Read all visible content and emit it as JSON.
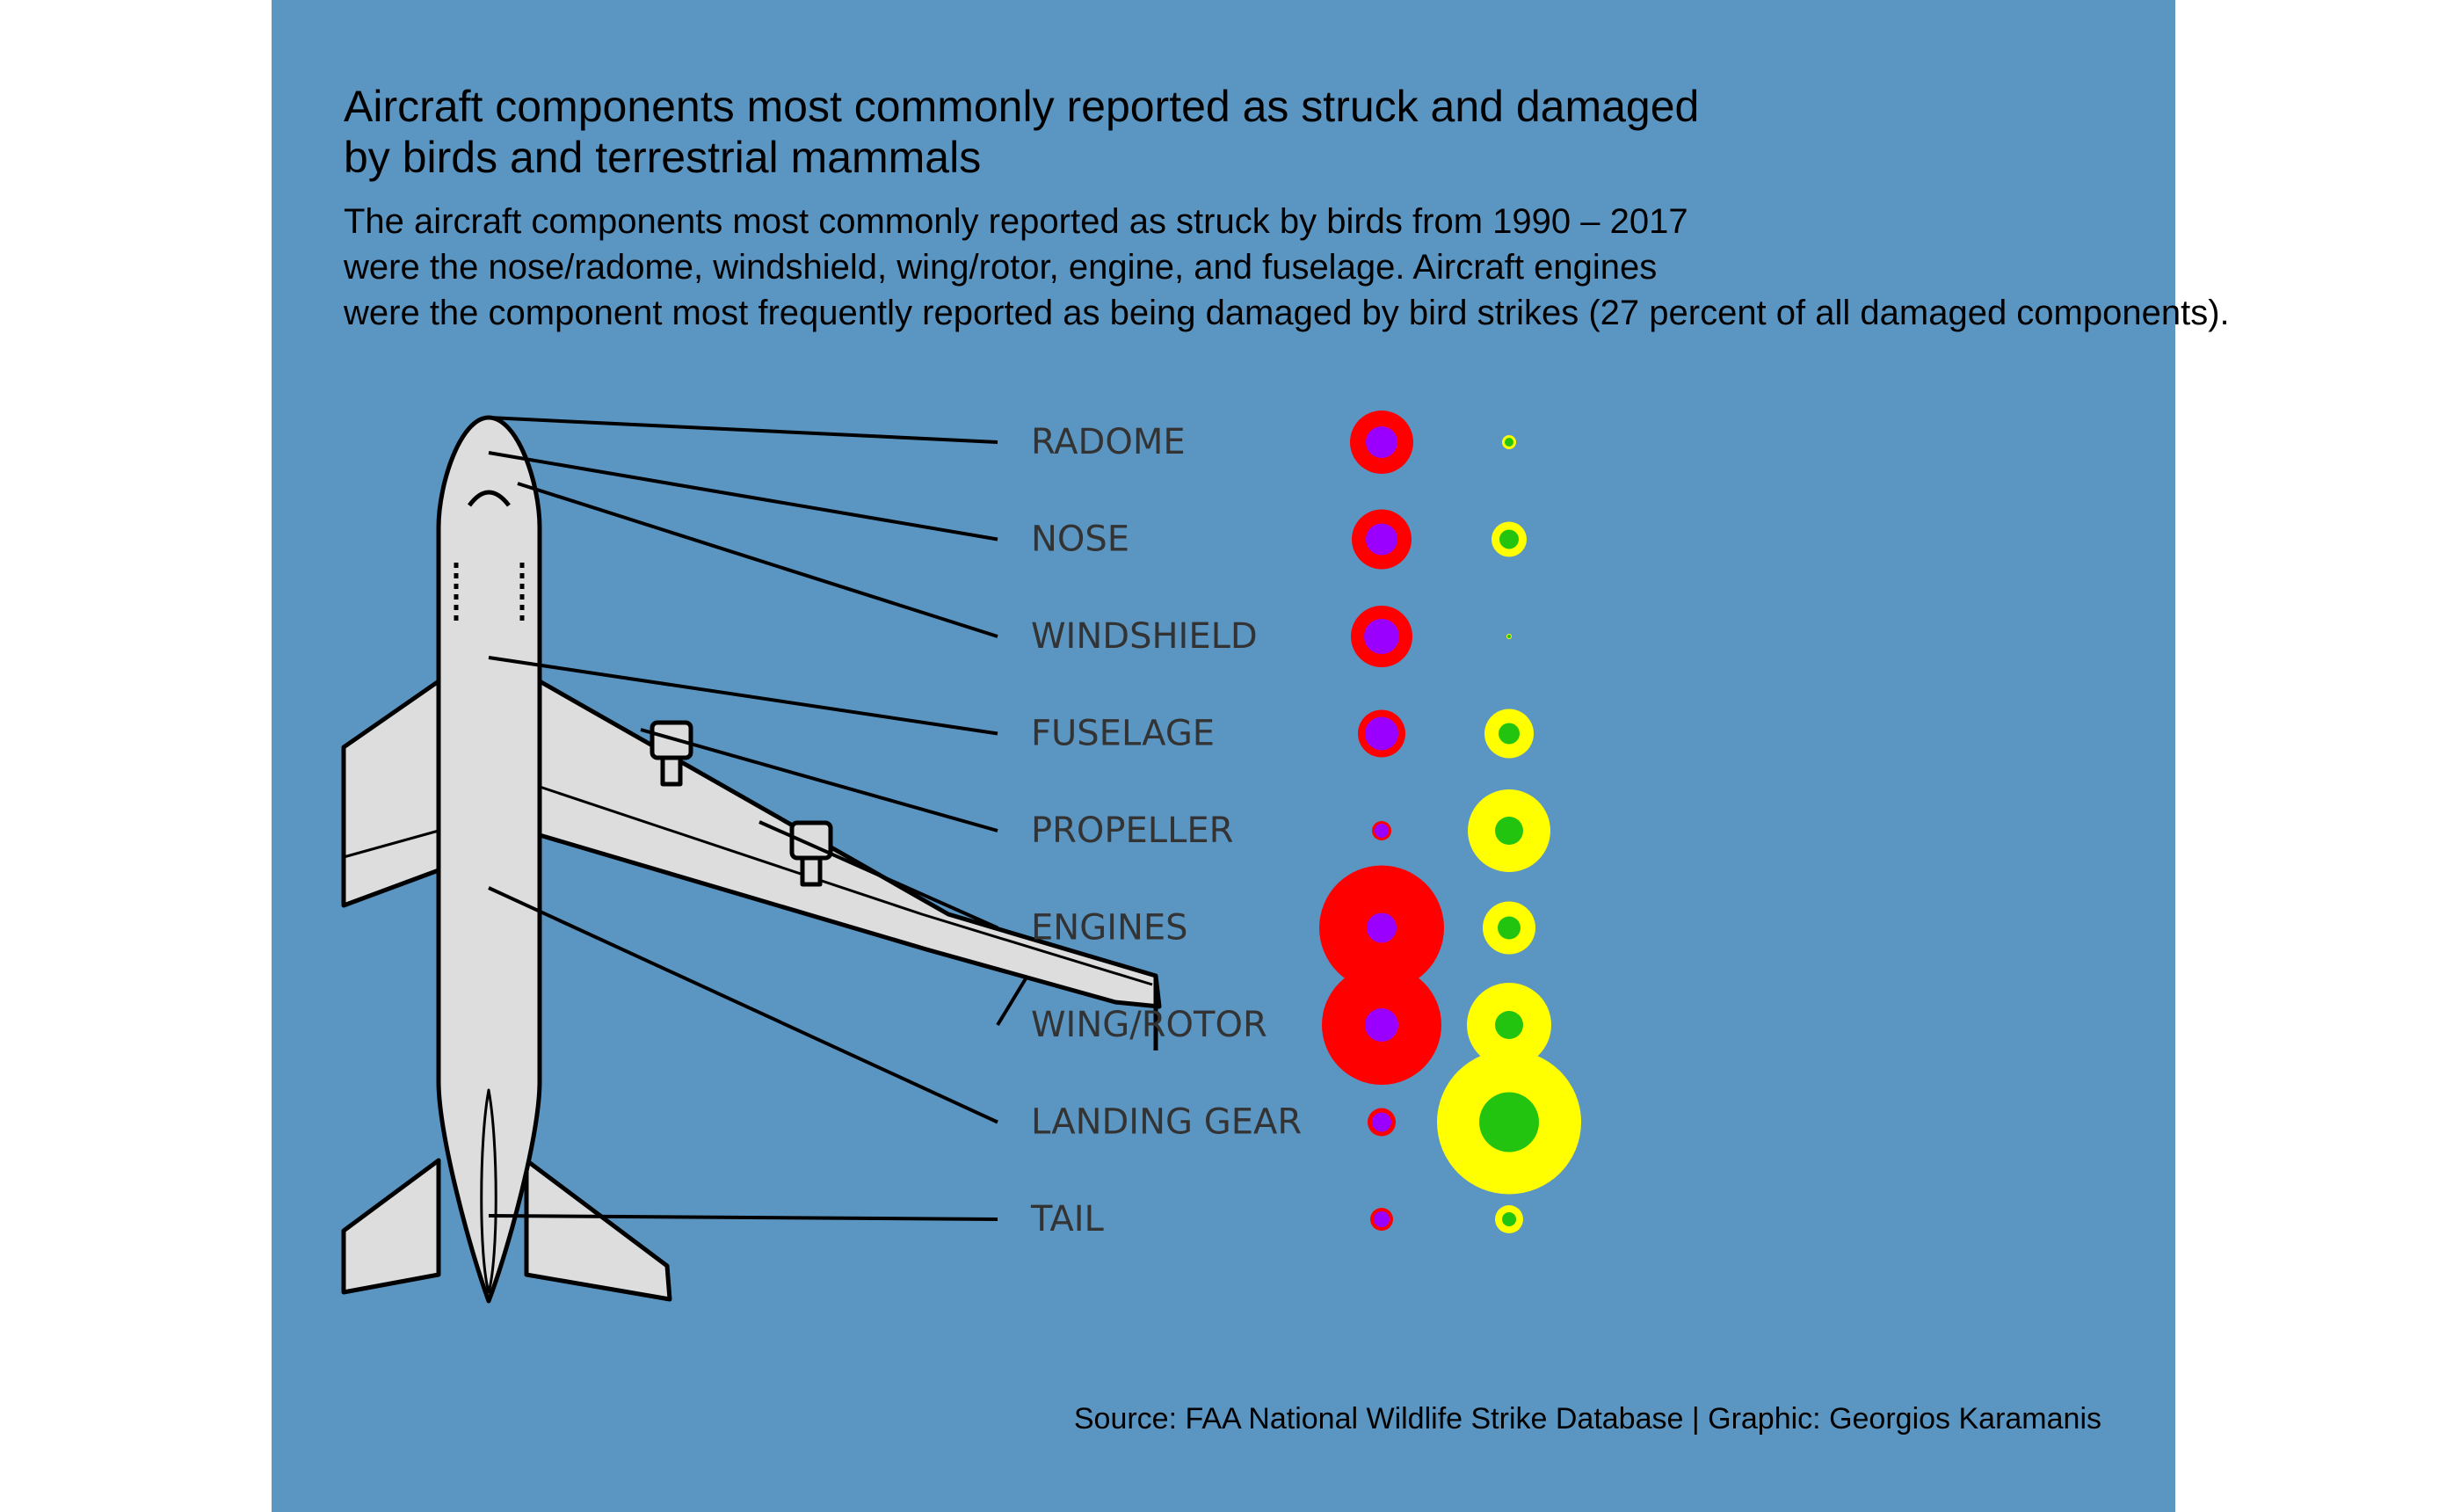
{
  "title": "Aircraft components most commonly reported as struck and damaged\nby birds and terrestrial mammals",
  "subtitle": "The aircraft components most commonly reported as struck by birds from 1990 – 2017\nwere the nose/radome, windshield, wing/rotor, engine, and fuselage. Aircraft engines\nwere the component most frequently reported as being damaged by bird strikes (27 percent of all damaged components).",
  "caption": "Source: FAA National Wildlife Strike Database | Graphic: Georgios Karamanis",
  "colors": {
    "background": "#5b96c3",
    "birds_struck": "#ff0000",
    "birds_damaged": "#9900ff",
    "mammals_struck": "#ffff00",
    "mammals_damaged": "#22c40f"
  },
  "chart_data": {
    "type": "scatter",
    "encoding": "proportional circles, relative size units",
    "categories": [
      "RADOME",
      "NOSE",
      "WINDSHIELD",
      "FUSELAGE",
      "PROPELLER",
      "ENGINES",
      "WING/ROTOR",
      "LANDING GEAR",
      "TAIL"
    ],
    "series": [
      {
        "group": "birds",
        "measure": "struck",
        "color": "#ff0000",
        "values": [
          36,
          34,
          35,
          27,
          11,
          71,
          68,
          16,
          13
        ]
      },
      {
        "group": "birds",
        "measure": "damaged",
        "color": "#9900ff",
        "values": [
          18,
          18,
          20,
          19,
          8,
          17,
          19,
          11,
          9
        ]
      },
      {
        "group": "mammals",
        "measure": "struck",
        "color": "#ffff00",
        "values": [
          8,
          20,
          3,
          28,
          47,
          30,
          48,
          82,
          16
        ]
      },
      {
        "group": "mammals",
        "measure": "damaged",
        "color": "#22c40f",
        "values": [
          5,
          11,
          2,
          12,
          16,
          13,
          16,
          34,
          8
        ]
      }
    ]
  }
}
